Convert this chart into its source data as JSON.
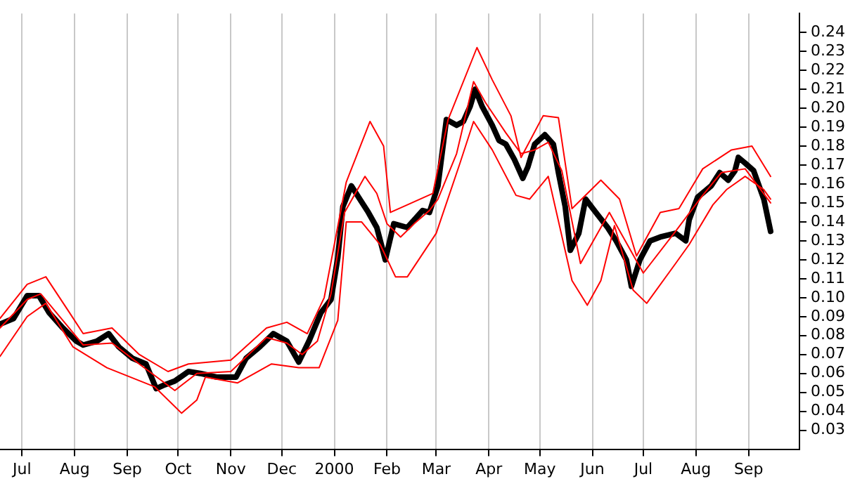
{
  "chart_data": {
    "type": "line",
    "xlim": [
      "1999-06-18",
      "2000-10-01"
    ],
    "ylim": [
      0.02,
      0.25
    ],
    "xticks": [
      {
        "value": "1999-07-01",
        "label": "Jul"
      },
      {
        "value": "1999-08-01",
        "label": "Aug"
      },
      {
        "value": "1999-09-01",
        "label": "Sep"
      },
      {
        "value": "1999-10-01",
        "label": "Oct"
      },
      {
        "value": "1999-11-01",
        "label": "Nov"
      },
      {
        "value": "1999-12-01",
        "label": "Dec"
      },
      {
        "value": "2000-01-01",
        "label": "2000"
      },
      {
        "value": "2000-02-01",
        "label": "Feb"
      },
      {
        "value": "2000-03-01",
        "label": "Mar"
      },
      {
        "value": "2000-04-01",
        "label": "Apr"
      },
      {
        "value": "2000-05-01",
        "label": "May"
      },
      {
        "value": "2000-06-01",
        "label": "Jun"
      },
      {
        "value": "2000-07-01",
        "label": "Jul"
      },
      {
        "value": "2000-08-01",
        "label": "Aug"
      },
      {
        "value": "2000-09-01",
        "label": "Sep"
      }
    ],
    "yticks": [
      0.03,
      0.04,
      0.05,
      0.06,
      0.07,
      0.08,
      0.09,
      {
        "value": 0.1,
        "label": "0.10"
      },
      0.11,
      0.12,
      0.13,
      0.14,
      0.15,
      0.16,
      0.17,
      0.18,
      0.19,
      {
        "value": 0.2,
        "label": "0.20"
      },
      0.21,
      0.22,
      0.23,
      0.24
    ],
    "grid": "x",
    "legend": false,
    "marker": "none",
    "line_style": "solid",
    "series": [
      {
        "color": "#ff0000",
        "x": [
          "1999-06-18",
          "1999-07-04",
          "1999-07-15",
          "1999-07-29",
          "1999-08-06",
          "1999-08-23",
          "1999-09-08",
          "1999-09-25",
          "1999-10-07",
          "1999-11-01",
          "1999-11-22",
          "1999-12-04",
          "1999-12-16",
          "1999-12-26",
          "2000-01-08",
          "2000-01-22",
          "2000-01-30",
          "2000-02-03",
          "2000-02-13",
          "2000-02-28",
          "2000-03-08",
          "2000-03-25",
          "2000-04-03",
          "2000-04-14",
          "2000-04-20",
          "2000-05-03",
          "2000-05-12",
          "2000-05-20",
          "2000-06-06",
          "2000-06-17",
          "2000-06-27",
          "2000-07-11",
          "2000-07-22",
          "2000-08-05",
          "2000-08-22",
          "2000-09-03",
          "2000-09-14"
        ],
        "values": [
          0.089,
          0.107,
          0.111,
          0.092,
          0.081,
          0.084,
          0.07,
          0.061,
          0.065,
          0.067,
          0.084,
          0.087,
          0.081,
          0.1,
          0.161,
          0.193,
          0.18,
          0.145,
          0.149,
          0.155,
          0.194,
          0.232,
          0.215,
          0.196,
          0.174,
          0.196,
          0.195,
          0.147,
          0.162,
          0.152,
          0.122,
          0.145,
          0.147,
          0.168,
          0.178,
          0.18,
          0.164
        ]
      },
      {
        "color": "#ff0000",
        "x": [
          "1999-06-18",
          "1999-07-04",
          "1999-07-12",
          "1999-07-25",
          "1999-08-06",
          "1999-08-23",
          "1999-09-08",
          "1999-09-29",
          "1999-10-12",
          "1999-11-01",
          "1999-11-22",
          "1999-12-04",
          "1999-12-13",
          "1999-12-22",
          "1999-12-30",
          "2000-01-07",
          "2000-01-19",
          "2000-01-26",
          "2000-02-01",
          "2000-02-09",
          "2000-02-17",
          "2000-02-26",
          "2000-03-02",
          "2000-03-13",
          "2000-03-23",
          "2000-03-30",
          "2000-04-11",
          "2000-04-20",
          "2000-04-28",
          "2000-05-06",
          "2000-05-14",
          "2000-05-25",
          "2000-06-11",
          "2000-07-01",
          "2000-07-20",
          "2000-08-05",
          "2000-08-16",
          "2000-08-30",
          "2000-09-14"
        ],
        "values": [
          0.084,
          0.099,
          0.102,
          0.088,
          0.075,
          0.076,
          0.065,
          0.051,
          0.06,
          0.061,
          0.079,
          0.076,
          0.07,
          0.077,
          0.102,
          0.145,
          0.164,
          0.155,
          0.139,
          0.132,
          0.139,
          0.146,
          0.152,
          0.176,
          0.214,
          0.203,
          0.187,
          0.176,
          0.178,
          0.182,
          0.167,
          0.118,
          0.145,
          0.113,
          0.135,
          0.154,
          0.166,
          0.168,
          0.15
        ]
      },
      {
        "color": "#ff0000",
        "x": [
          "1999-06-18",
          "1999-07-04",
          "1999-07-15",
          "1999-07-31",
          "1999-08-20",
          "1999-09-17",
          "1999-10-03",
          "1999-10-12",
          "1999-10-17",
          "1999-11-05",
          "1999-11-25",
          "1999-12-11",
          "1999-12-23",
          "2000-01-03",
          "2000-01-08",
          "2000-01-17",
          "2000-01-28",
          "2000-02-06",
          "2000-02-13",
          "2000-03-01",
          "2000-03-15",
          "2000-03-23",
          "2000-04-03",
          "2000-04-17",
          "2000-04-25",
          "2000-05-06",
          "2000-05-20",
          "2000-05-29",
          "2000-06-06",
          "2000-06-14",
          "2000-06-25",
          "2000-07-03",
          "2000-07-20",
          "2000-07-28",
          "2000-08-11",
          "2000-08-19",
          "2000-08-30",
          "2000-09-10",
          "2000-09-14"
        ],
        "values": [
          0.069,
          0.09,
          0.097,
          0.074,
          0.063,
          0.053,
          0.039,
          0.046,
          0.058,
          0.055,
          0.065,
          0.063,
          0.063,
          0.088,
          0.14,
          0.14,
          0.128,
          0.111,
          0.111,
          0.134,
          0.171,
          0.193,
          0.178,
          0.154,
          0.152,
          0.164,
          0.109,
          0.096,
          0.109,
          0.138,
          0.104,
          0.097,
          0.118,
          0.128,
          0.149,
          0.157,
          0.164,
          0.157,
          0.152
        ]
      },
      {
        "color": "#000000",
        "x": [
          "1999-06-18",
          "1999-06-26",
          "1999-07-04",
          "1999-07-11",
          "1999-07-17",
          "1999-07-25",
          "1999-08-02",
          "1999-08-06",
          "1999-08-14",
          "1999-08-21",
          "1999-08-27",
          "1999-09-04",
          "1999-09-12",
          "1999-09-18",
          "1999-09-23",
          "1999-09-29",
          "1999-10-07",
          "1999-10-14",
          "1999-10-24",
          "1999-11-04",
          "1999-11-10",
          "1999-11-18",
          "1999-11-26",
          "1999-12-04",
          "1999-12-11",
          "1999-12-17",
          "1999-12-24",
          "1999-12-30",
          "2000-01-03",
          "2000-01-06",
          "2000-01-11",
          "2000-01-16",
          "2000-01-21",
          "2000-01-26",
          "2000-01-31",
          "2000-02-05",
          "2000-02-13",
          "2000-02-22",
          "2000-02-26",
          "2000-03-02",
          "2000-03-07",
          "2000-03-13",
          "2000-03-17",
          "2000-03-21",
          "2000-03-24",
          "2000-03-28",
          "2000-04-03",
          "2000-04-07",
          "2000-04-11",
          "2000-04-16",
          "2000-04-21",
          "2000-04-24",
          "2000-04-28",
          "2000-05-04",
          "2000-05-09",
          "2000-05-12",
          "2000-05-16",
          "2000-05-19",
          "2000-05-24",
          "2000-05-28",
          "2000-06-03",
          "2000-06-10",
          "2000-06-15",
          "2000-06-21",
          "2000-06-24",
          "2000-06-29",
          "2000-07-05",
          "2000-07-11",
          "2000-07-20",
          "2000-07-26",
          "2000-07-28",
          "2000-08-02",
          "2000-08-10",
          "2000-08-15",
          "2000-08-20",
          "2000-08-24",
          "2000-08-26",
          "2000-08-30",
          "2000-09-04",
          "2000-09-10",
          "2000-09-14"
        ],
        "values": [
          0.086,
          0.089,
          0.101,
          0.101,
          0.092,
          0.084,
          0.077,
          0.075,
          0.077,
          0.081,
          0.074,
          0.068,
          0.065,
          0.052,
          0.054,
          0.056,
          0.061,
          0.06,
          0.058,
          0.058,
          0.068,
          0.074,
          0.081,
          0.077,
          0.066,
          0.077,
          0.092,
          0.099,
          0.121,
          0.148,
          0.159,
          0.152,
          0.145,
          0.137,
          0.12,
          0.139,
          0.137,
          0.146,
          0.145,
          0.159,
          0.194,
          0.191,
          0.193,
          0.201,
          0.21,
          0.201,
          0.191,
          0.183,
          0.181,
          0.173,
          0.163,
          0.169,
          0.181,
          0.186,
          0.181,
          0.166,
          0.148,
          0.125,
          0.134,
          0.152,
          0.145,
          0.137,
          0.13,
          0.12,
          0.106,
          0.12,
          0.13,
          0.132,
          0.134,
          0.13,
          0.141,
          0.153,
          0.159,
          0.166,
          0.162,
          0.167,
          0.174,
          0.171,
          0.167,
          0.152,
          0.135
        ]
      }
    ]
  }
}
